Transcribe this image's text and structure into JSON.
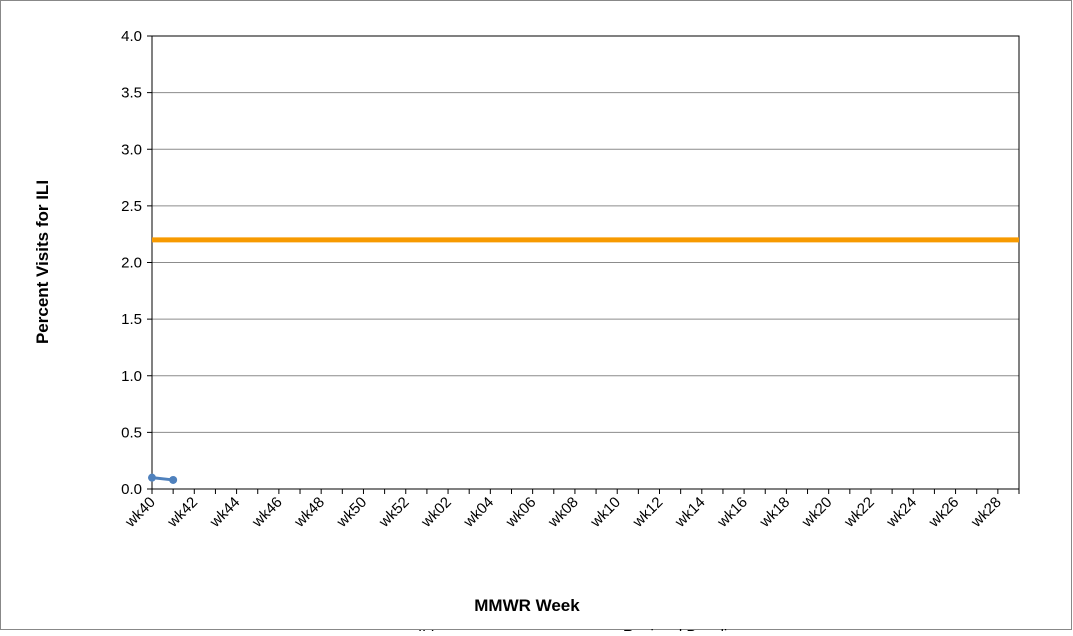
{
  "chart_data": {
    "type": "line",
    "x_label": "MMWR Week",
    "y_label": "Percent Visits for ILI",
    "categories": [
      "wk40",
      null,
      "wk42",
      null,
      "wk44",
      null,
      "wk46",
      null,
      "wk48",
      null,
      "wk50",
      null,
      "wk52",
      null,
      "wk02",
      null,
      "wk04",
      null,
      "wk06",
      null,
      "wk08",
      null,
      "wk10",
      null,
      "wk12",
      null,
      "wk14",
      null,
      "wk16",
      null,
      "wk18",
      null,
      "wk20",
      null,
      "wk22",
      null,
      "wk24",
      null,
      "wk26",
      null,
      "wk28",
      null
    ],
    "series": [
      {
        "name": "ILI",
        "color": "#4f81bd",
        "marker": true,
        "values": [
          0.1,
          0.08,
          null,
          null,
          null,
          null,
          null,
          null,
          null,
          null,
          null,
          null,
          null,
          null,
          null,
          null,
          null,
          null,
          null,
          null,
          null,
          null,
          null,
          null,
          null,
          null,
          null,
          null,
          null,
          null,
          null,
          null,
          null,
          null,
          null,
          null,
          null,
          null,
          null,
          null,
          null,
          null
        ]
      },
      {
        "name": "Regional Baseline",
        "color": "#f79a00",
        "marker": false,
        "values": [
          2.2,
          2.2,
          2.2,
          2.2,
          2.2,
          2.2,
          2.2,
          2.2,
          2.2,
          2.2,
          2.2,
          2.2,
          2.2,
          2.2,
          2.2,
          2.2,
          2.2,
          2.2,
          2.2,
          2.2,
          2.2,
          2.2,
          2.2,
          2.2,
          2.2,
          2.2,
          2.2,
          2.2,
          2.2,
          2.2,
          2.2,
          2.2,
          2.2,
          2.2,
          2.2,
          2.2,
          2.2,
          2.2,
          2.2,
          2.2,
          2.2,
          2.2
        ]
      }
    ],
    "ylim": [
      0,
      4
    ],
    "yticks": [
      {
        "value": 0,
        "label": "0.0"
      },
      0.5,
      {
        "value": 1,
        "label": "1.0"
      },
      1.5,
      {
        "value": 2,
        "label": "2.0"
      },
      2.5,
      {
        "value": 3,
        "label": "3.0"
      },
      3.5,
      {
        "value": 4,
        "label": "4.0"
      }
    ],
    "grid": true,
    "legend": "bottom"
  }
}
